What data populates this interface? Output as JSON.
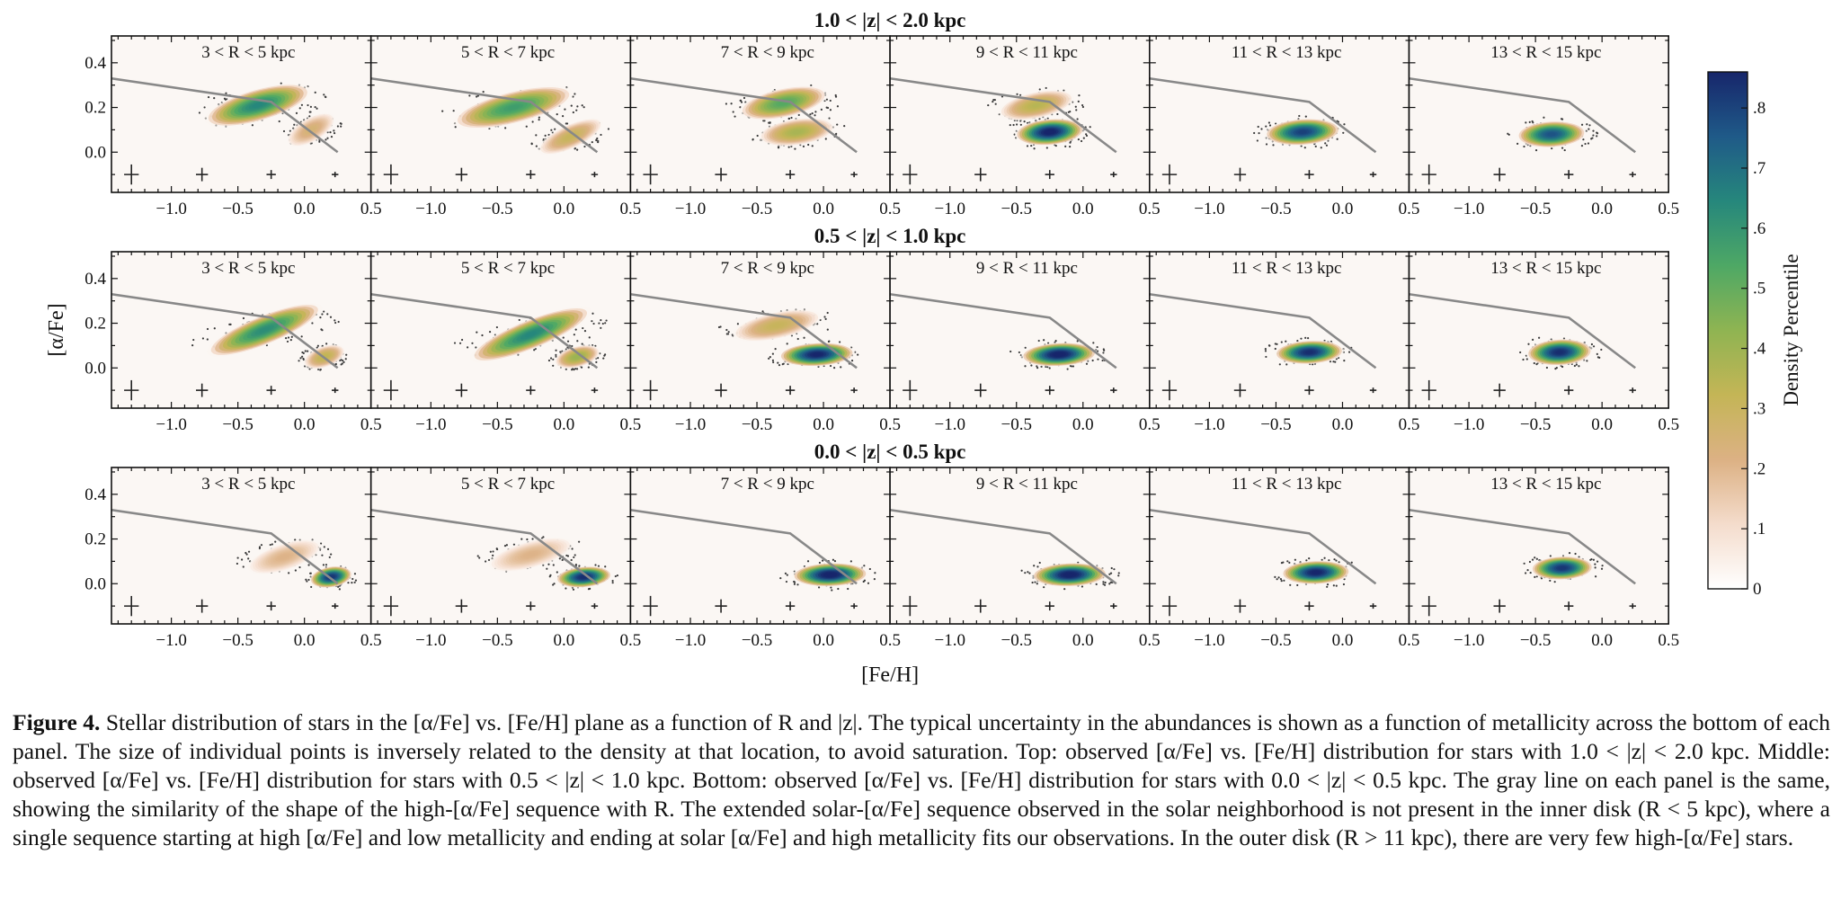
{
  "chart_data": {
    "type": "heatmap",
    "row_titles": [
      "1.0 < |z| < 2.0 kpc",
      "0.5 < |z| < 1.0 kpc",
      "0.0 < |z| < 0.5 kpc"
    ],
    "column_titles": [
      "3 < R < 5 kpc",
      "5 < R < 7 kpc",
      "7 < R < 9 kpc",
      "9 < R < 11 kpc",
      "11 < R < 13 kpc",
      "13 < R < 15 kpc"
    ],
    "xlabel": "[Fe/H]",
    "ylabel": "[α/Fe]",
    "xlim": [
      -1.45,
      0.5
    ],
    "ylim": [
      -0.18,
      0.52
    ],
    "x_ticks": [
      "−1.0",
      "−0.5",
      "0.0",
      "0.5"
    ],
    "x_tick_values": [
      -1.0,
      -0.5,
      0.0,
      0.5
    ],
    "y_ticks": [
      "0.0",
      "0.2",
      "0.4"
    ],
    "y_tick_values": [
      0.0,
      0.2,
      0.4
    ],
    "colorbar": {
      "label": "Density Percentile",
      "range": [
        0,
        0.86
      ],
      "tick_values": [
        0,
        0.1,
        0.2,
        0.3,
        0.4,
        0.5,
        0.6,
        0.7,
        0.8
      ],
      "tick_labels": [
        "0",
        ".1",
        ".2",
        ".3",
        ".4",
        ".5",
        ".6",
        ".7",
        ".8"
      ],
      "stops": [
        "#ffffff",
        "#f4dccc",
        "#dcb184",
        "#c4b556",
        "#8fb452",
        "#4ea865",
        "#26877c",
        "#1f5a88",
        "#17266b"
      ]
    },
    "reference_line": {
      "color": "#888888",
      "x": [
        -1.45,
        -0.25,
        0.25
      ],
      "y": [
        0.33,
        0.225,
        0.0
      ]
    },
    "error_bars": {
      "feh": [
        -1.3,
        -0.77,
        -0.25,
        0.23
      ],
      "y": -0.1,
      "xerr": [
        0.055,
        0.045,
        0.035,
        0.025
      ],
      "yerr": [
        0.045,
        0.03,
        0.02,
        0.012
      ]
    },
    "panels": [
      {
        "row": 0,
        "col": 0,
        "blobs": [
          {
            "x": -0.35,
            "y": 0.21,
            "sx": 0.32,
            "sy": 0.055,
            "rot": -16,
            "peak": 0.62
          },
          {
            "x": 0.05,
            "y": 0.1,
            "sx": 0.15,
            "sy": 0.04,
            "rot": -30,
            "peak": 0.22
          }
        ]
      },
      {
        "row": 0,
        "col": 1,
        "blobs": [
          {
            "x": -0.38,
            "y": 0.2,
            "sx": 0.36,
            "sy": 0.055,
            "rot": -14,
            "peak": 0.55
          },
          {
            "x": 0.05,
            "y": 0.07,
            "sx": 0.2,
            "sy": 0.04,
            "rot": -25,
            "peak": 0.28
          }
        ]
      },
      {
        "row": 0,
        "col": 2,
        "blobs": [
          {
            "x": -0.3,
            "y": 0.22,
            "sx": 0.26,
            "sy": 0.05,
            "rot": -12,
            "peak": 0.5
          },
          {
            "x": -0.2,
            "y": 0.09,
            "sx": 0.22,
            "sy": 0.045,
            "rot": -8,
            "peak": 0.35
          }
        ]
      },
      {
        "row": 0,
        "col": 3,
        "blobs": [
          {
            "x": -0.25,
            "y": 0.09,
            "sx": 0.2,
            "sy": 0.045,
            "rot": -5,
            "peak": 0.85
          },
          {
            "x": -0.35,
            "y": 0.21,
            "sx": 0.22,
            "sy": 0.045,
            "rot": -12,
            "peak": 0.32
          }
        ]
      },
      {
        "row": 0,
        "col": 4,
        "blobs": [
          {
            "x": -0.3,
            "y": 0.09,
            "sx": 0.22,
            "sy": 0.045,
            "rot": -4,
            "peak": 0.78
          }
        ]
      },
      {
        "row": 0,
        "col": 5,
        "blobs": [
          {
            "x": -0.38,
            "y": 0.08,
            "sx": 0.2,
            "sy": 0.045,
            "rot": -3,
            "peak": 0.74
          }
        ]
      },
      {
        "row": 1,
        "col": 0,
        "blobs": [
          {
            "x": -0.3,
            "y": 0.17,
            "sx": 0.36,
            "sy": 0.05,
            "rot": -22,
            "peak": 0.6
          },
          {
            "x": 0.15,
            "y": 0.05,
            "sx": 0.12,
            "sy": 0.035,
            "rot": -20,
            "peak": 0.3
          }
        ]
      },
      {
        "row": 1,
        "col": 1,
        "blobs": [
          {
            "x": -0.25,
            "y": 0.15,
            "sx": 0.38,
            "sy": 0.05,
            "rot": -22,
            "peak": 0.62
          },
          {
            "x": 0.1,
            "y": 0.05,
            "sx": 0.13,
            "sy": 0.035,
            "rot": -15,
            "peak": 0.38
          }
        ]
      },
      {
        "row": 1,
        "col": 2,
        "blobs": [
          {
            "x": -0.05,
            "y": 0.06,
            "sx": 0.22,
            "sy": 0.04,
            "rot": -3,
            "peak": 0.84
          },
          {
            "x": -0.35,
            "y": 0.19,
            "sx": 0.26,
            "sy": 0.045,
            "rot": -12,
            "peak": 0.28
          }
        ]
      },
      {
        "row": 1,
        "col": 3,
        "blobs": [
          {
            "x": -0.18,
            "y": 0.06,
            "sx": 0.22,
            "sy": 0.04,
            "rot": -3,
            "peak": 0.86
          }
        ]
      },
      {
        "row": 1,
        "col": 4,
        "blobs": [
          {
            "x": -0.25,
            "y": 0.07,
            "sx": 0.2,
            "sy": 0.04,
            "rot": -3,
            "peak": 0.82
          }
        ]
      },
      {
        "row": 1,
        "col": 5,
        "blobs": [
          {
            "x": -0.32,
            "y": 0.07,
            "sx": 0.19,
            "sy": 0.045,
            "rot": -3,
            "peak": 0.82
          }
        ]
      },
      {
        "row": 2,
        "col": 0,
        "blobs": [
          {
            "x": 0.2,
            "y": 0.03,
            "sx": 0.12,
            "sy": 0.035,
            "rot": -10,
            "peak": 0.8
          },
          {
            "x": -0.15,
            "y": 0.12,
            "sx": 0.22,
            "sy": 0.045,
            "rot": -18,
            "peak": 0.18
          }
        ]
      },
      {
        "row": 2,
        "col": 1,
        "blobs": [
          {
            "x": 0.15,
            "y": 0.03,
            "sx": 0.16,
            "sy": 0.035,
            "rot": -5,
            "peak": 0.82
          },
          {
            "x": -0.25,
            "y": 0.13,
            "sx": 0.25,
            "sy": 0.045,
            "rot": -15,
            "peak": 0.18
          }
        ]
      },
      {
        "row": 2,
        "col": 2,
        "blobs": [
          {
            "x": 0.05,
            "y": 0.04,
            "sx": 0.22,
            "sy": 0.04,
            "rot": -2,
            "peak": 0.86
          }
        ]
      },
      {
        "row": 2,
        "col": 3,
        "blobs": [
          {
            "x": -0.1,
            "y": 0.04,
            "sx": 0.22,
            "sy": 0.04,
            "rot": -2,
            "peak": 0.86
          }
        ]
      },
      {
        "row": 2,
        "col": 4,
        "blobs": [
          {
            "x": -0.2,
            "y": 0.05,
            "sx": 0.2,
            "sy": 0.04,
            "rot": -2,
            "peak": 0.84
          }
        ]
      },
      {
        "row": 2,
        "col": 5,
        "blobs": [
          {
            "x": -0.3,
            "y": 0.07,
            "sx": 0.18,
            "sy": 0.04,
            "rot": -2,
            "peak": 0.8
          }
        ]
      }
    ]
  },
  "caption": {
    "label": "Figure 4.",
    "text": "Stellar distribution of stars in the [α/Fe] vs. [Fe/H] plane as a function of R and |z|. The typical uncertainty in the abundances is shown as a function of metallicity across the bottom of each panel. The size of individual points is inversely related to the density at that location, to avoid saturation. Top: observed [α/Fe] vs. [Fe/H] distribution for stars with 1.0 < |z| < 2.0 kpc. Middle: observed [α/Fe] vs. [Fe/H] distribution for stars with 0.5 < |z| < 1.0 kpc. Bottom: observed [α/Fe] vs. [Fe/H] distribution for stars with 0.0 < |z| < 0.5 kpc. The gray line on each panel is the same, showing the similarity of the shape of the high-[α/Fe] sequence with R. The extended solar-[α/Fe] sequence observed in the solar neighborhood is not present in the inner disk (R < 5 kpc), where a single sequence starting at high [α/Fe] and low metallicity and ending at solar [α/Fe] and high metallicity fits our observations. In the outer disk (R > 11 kpc), there are very few high-[α/Fe] stars."
  }
}
